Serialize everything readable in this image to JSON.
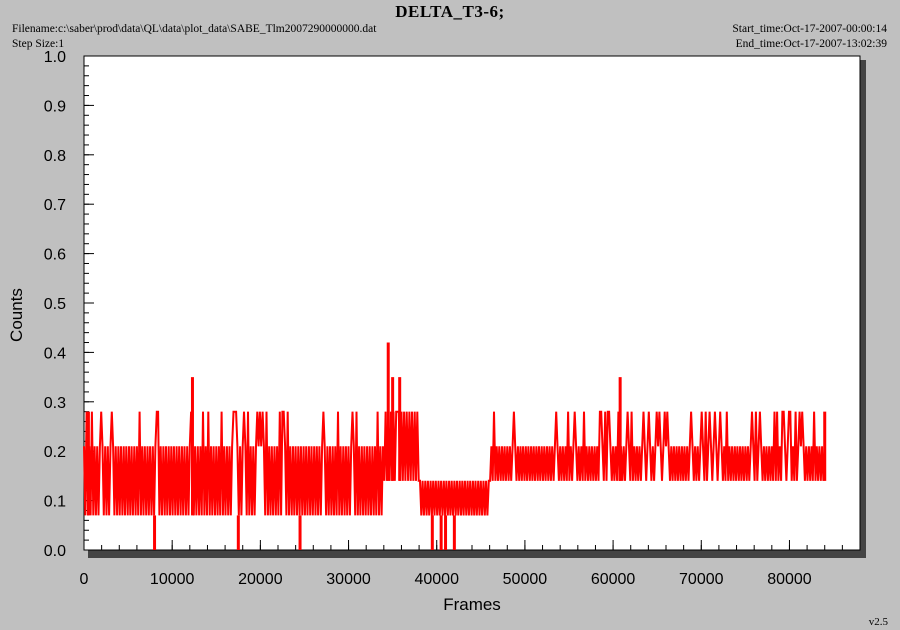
{
  "header": {
    "title": "DELTA_T3-6;",
    "filename": "Filename:c:\\saber\\prod\\data\\QL\\data\\plot_data\\SABE_Tlm2007290000000.dat",
    "step_size": "Step Size:1",
    "start_time": "Start_time:Oct-17-2007-00:00:14",
    "end_time": "End_time:Oct-17-2007-13:02:39"
  },
  "footer": {
    "version": "v2.5"
  },
  "colors": {
    "background": "#c0c0c0",
    "plot_area": "#ffffff",
    "series": "#ff0000",
    "shadow": "#444444"
  },
  "chart_data": {
    "type": "line",
    "title": "DELTA_T3-6;",
    "xlabel": "Frames",
    "ylabel": "Counts",
    "xlim": [
      0,
      88000
    ],
    "ylim": [
      0,
      1.0
    ],
    "x_ticks": [
      0,
      10000,
      20000,
      30000,
      40000,
      50000,
      60000,
      70000,
      80000
    ],
    "y_ticks": [
      0.0,
      0.1,
      0.2,
      0.3,
      0.4,
      0.5,
      0.6,
      0.7,
      0.8,
      0.9,
      1.0
    ],
    "x_tick_labels": [
      "0",
      "10000",
      "20000",
      "30000",
      "40000",
      "50000",
      "60000",
      "70000",
      "80000"
    ],
    "y_tick_labels": [
      "0.0",
      "0.1",
      "0.2",
      "0.3",
      "0.4",
      "0.5",
      "0.6",
      "0.7",
      "0.8",
      "0.9",
      "1.0"
    ],
    "grid": false,
    "series": [
      {
        "color": "#ff0000",
        "band": [
          {
            "x": 0,
            "low": 0.07,
            "high": 0.21
          },
          {
            "x": 10000,
            "low": 0.07,
            "high": 0.21
          },
          {
            "x": 20000,
            "low": 0.07,
            "high": 0.21
          },
          {
            "x": 30000,
            "low": 0.07,
            "high": 0.21
          },
          {
            "x": 34000,
            "low": 0.14,
            "high": 0.28
          },
          {
            "x": 36000,
            "low": 0.14,
            "high": 0.28
          },
          {
            "x": 38000,
            "low": 0.07,
            "high": 0.14
          },
          {
            "x": 45000,
            "low": 0.07,
            "high": 0.14
          },
          {
            "x": 46000,
            "low": 0.14,
            "high": 0.21
          },
          {
            "x": 84000,
            "low": 0.14,
            "high": 0.21
          }
        ],
        "spikes": [
          {
            "x": 500,
            "y": 0.28
          },
          {
            "x": 8000,
            "y": 0.0
          },
          {
            "x": 12300,
            "y": 0.35
          },
          {
            "x": 17500,
            "y": 0.0
          },
          {
            "x": 24500,
            "y": 0.0
          },
          {
            "x": 34500,
            "y": 0.42
          },
          {
            "x": 35000,
            "y": 0.35
          },
          {
            "x": 35800,
            "y": 0.35
          },
          {
            "x": 39500,
            "y": 0.0
          },
          {
            "x": 40500,
            "y": 0.0
          },
          {
            "x": 41000,
            "y": 0.0
          },
          {
            "x": 42000,
            "y": 0.0
          },
          {
            "x": 60800,
            "y": 0.35
          },
          {
            "x": 84000,
            "y": 0.28
          }
        ],
        "upper_level": 0.28,
        "upper_ranges": [
          [
            0,
            34000
          ],
          [
            35000,
            37000
          ],
          [
            46000,
            84000
          ]
        ]
      }
    ]
  }
}
